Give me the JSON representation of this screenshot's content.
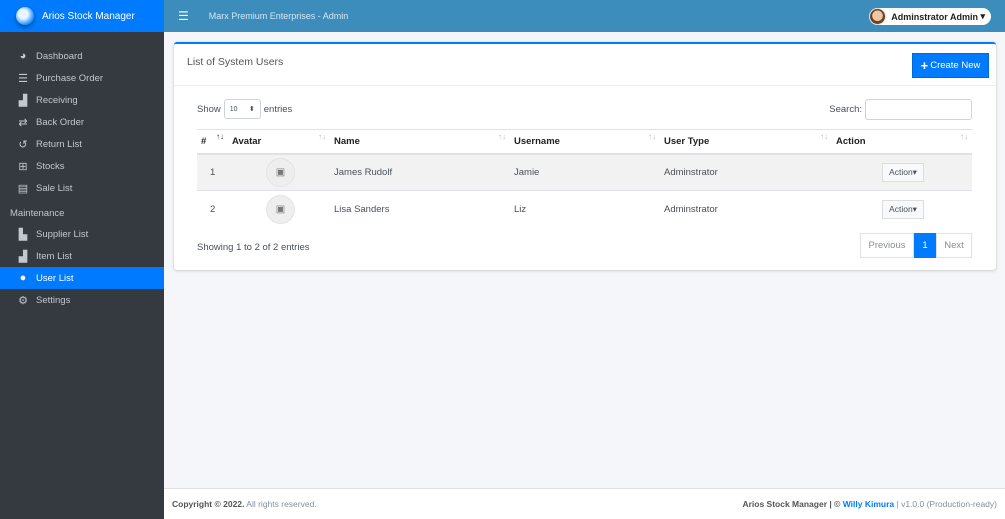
{
  "brand": {
    "name": "Arios Stock Manager"
  },
  "sidebar": {
    "items": [
      {
        "label": "Dashboard",
        "icon": "tachometer-icon"
      },
      {
        "label": "Purchase Order",
        "icon": "table-list-icon"
      },
      {
        "label": "Receiving",
        "icon": "boxes-icon"
      },
      {
        "label": "Back Order",
        "icon": "exchange-icon"
      },
      {
        "label": "Return List",
        "icon": "undo-icon"
      },
      {
        "label": "Stocks",
        "icon": "grid-icon"
      },
      {
        "label": "Sale List",
        "icon": "invoice-icon"
      }
    ],
    "section": "Maintenance",
    "maintenance": [
      {
        "label": "Supplier List",
        "icon": "truck-loading-icon"
      },
      {
        "label": "Item List",
        "icon": "boxes-icon"
      },
      {
        "label": "User List",
        "icon": "users-icon",
        "active": true
      },
      {
        "label": "Settings",
        "icon": "cogs-icon"
      }
    ]
  },
  "topbar": {
    "title": "Marx Premium Enterprises - Admin",
    "user": "Adminstrator Admin"
  },
  "card": {
    "title": "List of System Users",
    "create_label": "Create New",
    "show": "Show",
    "entries": "entries",
    "page_size": "10",
    "search_label": "Search:",
    "search_value": "",
    "columns": [
      "#",
      "Avatar",
      "Name",
      "Username",
      "User Type",
      "Action"
    ],
    "rows": [
      {
        "num": "1",
        "name": "James Rudolf",
        "username": "Jamie",
        "type": "Adminstrator",
        "action": "Action"
      },
      {
        "num": "2",
        "name": "Lisa Sanders",
        "username": "Liz",
        "type": "Adminstrator",
        "action": "Action"
      }
    ],
    "info": "Showing 1 to 2 of 2 entries",
    "pager": {
      "prev": "Previous",
      "current": "1",
      "next": "Next"
    }
  },
  "footer": {
    "copyright": "Copyright © 2022.",
    "rights": " All rights reserved.",
    "app": "Arios Stock Manager | © ",
    "author": "Willy Kimura",
    "version": " | v1.0.0 (Production-ready)"
  },
  "colors": {
    "primary": "#007bff",
    "topbar": "#3c8dbc",
    "sidebar": "#343a40"
  }
}
